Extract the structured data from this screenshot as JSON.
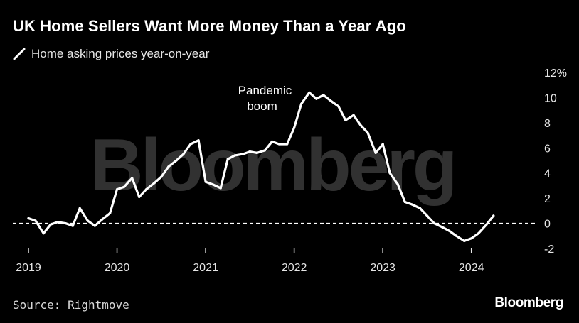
{
  "title": "UK Home Sellers Want More Money Than a Year Ago",
  "legend_label": "Home asking prices year-on-year",
  "source": "Source: Rightmove",
  "brand": "Bloomberg",
  "watermark": "Bloomberg",
  "colors": {
    "background": "#000000",
    "line": "#ffffff",
    "text": "#ffffff",
    "muted": "#e6e6e6"
  },
  "chart_data": {
    "type": "line",
    "title": "UK Home Sellers Want More Money Than a Year Ago",
    "xlabel": "",
    "ylabel": "",
    "xlim": [
      2019,
      2024.42
    ],
    "ylim": [
      -2,
      12
    ],
    "x_ticks": [
      2019,
      2020,
      2021,
      2022,
      2023,
      2024
    ],
    "x_tick_labels": [
      "2019",
      "2020",
      "2021",
      "2022",
      "2023",
      "2024"
    ],
    "y_ticks": [
      -2,
      0,
      2,
      4,
      6,
      8,
      10,
      12
    ],
    "y_tick_labels": [
      "-2",
      "0",
      "2",
      "4",
      "6",
      "8",
      "10",
      "12%"
    ],
    "reference_line": {
      "y": 0,
      "style": "dashed"
    },
    "annotations": [
      {
        "text": [
          "Pandemic",
          "boom"
        ],
        "x": 2021.75,
        "y": 10.5
      }
    ],
    "series": [
      {
        "name": "Home asking prices year-on-year",
        "x": [
          2019.0,
          2019.08,
          2019.17,
          2019.25,
          2019.33,
          2019.42,
          2019.5,
          2019.58,
          2019.67,
          2019.75,
          2019.83,
          2019.92,
          2020.0,
          2020.08,
          2020.17,
          2020.25,
          2020.33,
          2020.42,
          2020.5,
          2020.58,
          2020.67,
          2020.75,
          2020.83,
          2020.92,
          2021.0,
          2021.08,
          2021.17,
          2021.25,
          2021.33,
          2021.42,
          2021.5,
          2021.58,
          2021.67,
          2021.75,
          2021.83,
          2021.92,
          2022.0,
          2022.08,
          2022.17,
          2022.25,
          2022.33,
          2022.42,
          2022.5,
          2022.58,
          2022.67,
          2022.75,
          2022.83,
          2022.92,
          2023.0,
          2023.08,
          2023.17,
          2023.25,
          2023.33,
          2023.42,
          2023.5,
          2023.58,
          2023.67,
          2023.75,
          2023.83,
          2023.92,
          2024.0,
          2024.08,
          2024.17,
          2024.25
        ],
        "values": [
          0.4,
          0.2,
          -0.8,
          -0.1,
          0.1,
          0.0,
          -0.2,
          1.2,
          0.2,
          -0.2,
          0.3,
          0.8,
          2.7,
          2.9,
          3.6,
          2.1,
          2.7,
          3.2,
          3.7,
          4.5,
          5.0,
          5.5,
          6.3,
          6.6,
          3.3,
          3.1,
          2.8,
          5.1,
          5.4,
          5.5,
          5.7,
          5.6,
          5.8,
          6.5,
          6.3,
          6.3,
          7.6,
          9.5,
          10.4,
          9.9,
          10.2,
          9.7,
          9.3,
          8.2,
          8.6,
          7.8,
          7.2,
          5.6,
          6.3,
          4.0,
          3.1,
          1.7,
          1.5,
          1.2,
          0.6,
          0.0,
          -0.3,
          -0.6,
          -1.0,
          -1.4,
          -1.2,
          -0.8,
          -0.1,
          0.6
        ]
      }
    ]
  }
}
